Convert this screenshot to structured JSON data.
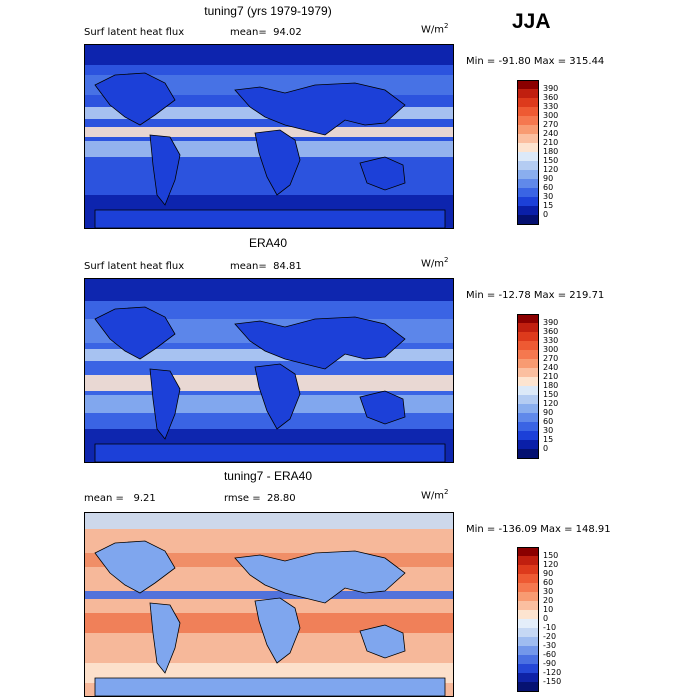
{
  "season": "JJA",
  "panels": [
    {
      "title": "tuning7 (yrs 1979-1979)",
      "left_label": "Surf latent heat flux",
      "mean_text": "mean=  94.02",
      "unit": "W/m",
      "unit_sup": "2",
      "minmax": "Min = -91.80 Max = 315.44",
      "colorbar_labels": [
        "390",
        "360",
        "330",
        "300",
        "270",
        "240",
        "210",
        "180",
        "150",
        "120",
        "90",
        "60",
        "30",
        "15",
        "0"
      ],
      "colorbar_colors": [
        "#8b0000",
        "#c01f0f",
        "#dd3a1c",
        "#ee5a33",
        "#f5784f",
        "#f89b72",
        "#fbbfa0",
        "#fde4d0",
        "#dce9f8",
        "#b4ccf2",
        "#8aaeee",
        "#6089ea",
        "#3a64e4",
        "#1c40d8",
        "#0a1fa8",
        "#041070"
      ],
      "map_theme": "flux1"
    },
    {
      "title": "ERA40",
      "left_label": "Surf latent heat flux",
      "mean_text": "mean=  84.81",
      "unit": "W/m",
      "unit_sup": "2",
      "minmax": "Min = -12.78 Max = 219.71",
      "colorbar_labels": [
        "390",
        "360",
        "330",
        "300",
        "270",
        "240",
        "210",
        "180",
        "150",
        "120",
        "90",
        "60",
        "30",
        "15",
        "0"
      ],
      "colorbar_colors": [
        "#8b0000",
        "#c01f0f",
        "#dd3a1c",
        "#ee5a33",
        "#f5784f",
        "#f89b72",
        "#fbbfa0",
        "#fde4d0",
        "#dce9f8",
        "#b4ccf2",
        "#8aaeee",
        "#6089ea",
        "#3a64e4",
        "#1c40d8",
        "#0a1fa8",
        "#041070"
      ],
      "map_theme": "flux2"
    },
    {
      "title": "tuning7 - ERA40",
      "left_label": "mean =   9.21",
      "mean_text": "rmse =  28.80",
      "unit": "W/m",
      "unit_sup": "2",
      "minmax": "Min = -136.09 Max = 148.91",
      "colorbar_labels": [
        "150",
        "120",
        "90",
        "60",
        "30",
        "20",
        "10",
        "0",
        "-10",
        "-20",
        "-30",
        "-60",
        "-90",
        "-120",
        "-150"
      ],
      "colorbar_colors": [
        "#8b0000",
        "#c01f0f",
        "#dd3a1c",
        "#ee5a33",
        "#f5784f",
        "#f89b72",
        "#fbbfa0",
        "#fde4d0",
        "#e4eefa",
        "#c6d8f4",
        "#9fbcf0",
        "#7397ea",
        "#4a70e2",
        "#2547d6",
        "#0f22a6",
        "#061272"
      ],
      "map_theme": "diff"
    }
  ]
}
